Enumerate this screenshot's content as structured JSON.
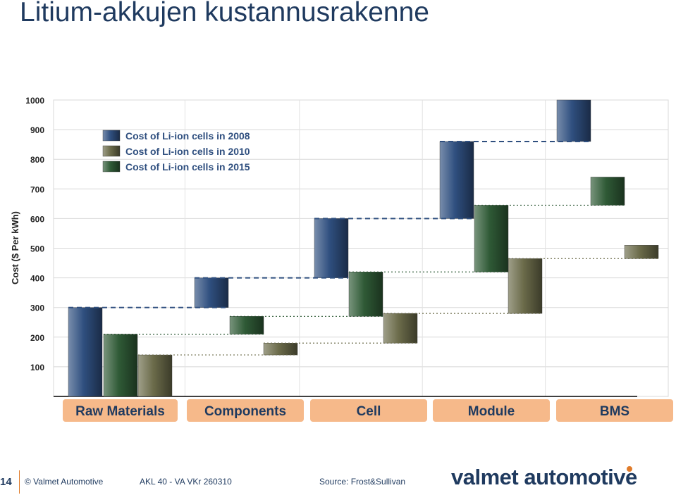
{
  "page": {
    "title": "Litium-akkujen kustannusrakenne",
    "page_number": "14",
    "copyright": "© Valmet Automotive",
    "reference": "AKL 40 - VA VKr 260310",
    "source": "Source: Frost&Sullivan",
    "logo_text": "valmet automotive"
  },
  "colors": {
    "series_2008": "#2f4f7f",
    "series_2010": "#6b6b4a",
    "series_2015": "#2f5a36",
    "category_bar": "#f6b98a",
    "title": "#1f3a5f",
    "accent": "#e07b2a"
  },
  "chart_data": {
    "type": "bar",
    "subtype": "waterfall",
    "ylabel": "Cost ($ Per kWh)",
    "ylim": [
      0,
      1000
    ],
    "yticks": [
      100,
      200,
      300,
      400,
      500,
      600,
      700,
      800,
      900,
      1000
    ],
    "grid": true,
    "legend_position": "top-left",
    "categories": [
      "Raw Materials",
      "Components",
      "Cell",
      "Module",
      "BMS"
    ],
    "series": [
      {
        "name": "Cost of Li-ion cells in 2008",
        "color_key": "series_2008",
        "segments": [
          [
            0,
            300
          ],
          [
            300,
            400
          ],
          [
            400,
            600
          ],
          [
            600,
            860
          ],
          [
            860,
            1000
          ]
        ]
      },
      {
        "name": "Cost of Li-ion cells in 2010",
        "color_key": "series_2010",
        "segments": [
          [
            0,
            140
          ],
          [
            140,
            180
          ],
          [
            180,
            280
          ],
          [
            280,
            465
          ],
          [
            465,
            510
          ]
        ]
      },
      {
        "name": "Cost of Li-ion cells in 2015",
        "color_key": "series_2015",
        "segments": [
          [
            0,
            210
          ],
          [
            210,
            270
          ],
          [
            270,
            420
          ],
          [
            420,
            645
          ],
          [
            645,
            740
          ]
        ]
      }
    ]
  }
}
